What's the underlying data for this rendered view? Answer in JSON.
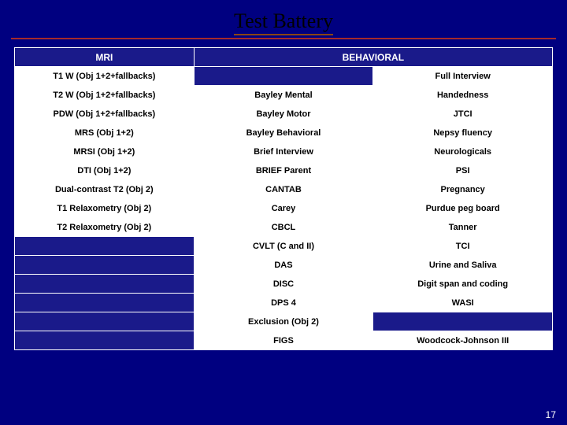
{
  "title": "Test Battery",
  "pageNumber": "17",
  "colors": {
    "background": "#000080",
    "cellBlue": "#1a1a8a",
    "cellWhite": "#ffffff",
    "border": "#ffffff",
    "divider": "#a52a2a",
    "textDark": "#000000",
    "textLight": "#ffffff"
  },
  "headers": {
    "col1": "MRI",
    "col2_3": "BEHAVIORAL"
  },
  "rows": [
    {
      "c1": "T1 W (Obj 1+2+fallbacks)",
      "c2": "",
      "c2blank": true,
      "c3": "Full Interview"
    },
    {
      "c1": "T2 W (Obj 1+2+fallbacks)",
      "c2": "Bayley Mental",
      "c3": "Handedness"
    },
    {
      "c1": "PDW (Obj 1+2+fallbacks)",
      "c2": "Bayley Motor",
      "c3": "JTCI"
    },
    {
      "c1": "MRS (Obj 1+2)",
      "c2": "Bayley Behavioral",
      "c3": "Nepsy fluency"
    },
    {
      "c1": "MRSI (Obj 1+2)",
      "c2": "Brief Interview",
      "c3": "Neurologicals"
    },
    {
      "c1": "DTI (Obj 1+2)",
      "c2": "BRIEF Parent",
      "c3": "PSI"
    },
    {
      "c1": "Dual-contrast T2 (Obj 2)",
      "c2": "CANTAB",
      "c3": "Pregnancy"
    },
    {
      "c1": "T1 Relaxometry (Obj 2)",
      "c2": "Carey",
      "c3": "Purdue peg board"
    },
    {
      "c1": "T2 Relaxometry (Obj 2)",
      "c2": "CBCL",
      "c3": "Tanner"
    },
    {
      "c1": "",
      "c1blank": true,
      "c2": "CVLT (C and II)",
      "c3": "TCI"
    },
    {
      "c1": "",
      "c1blank": true,
      "c2": "DAS",
      "c3": "Urine and Saliva"
    },
    {
      "c1": "",
      "c1blank": true,
      "c2": "DISC",
      "c3": "Digit span and coding"
    },
    {
      "c1": "",
      "c1blank": true,
      "c2": "DPS 4",
      "c3": "WASI"
    },
    {
      "c1": "",
      "c1blank": true,
      "c2": "Exclusion (Obj 2)",
      "c3": "",
      "c3blank": true
    },
    {
      "c1": "",
      "c1blank": true,
      "c2": "FIGS",
      "c3": "Woodcock-Johnson III"
    }
  ]
}
